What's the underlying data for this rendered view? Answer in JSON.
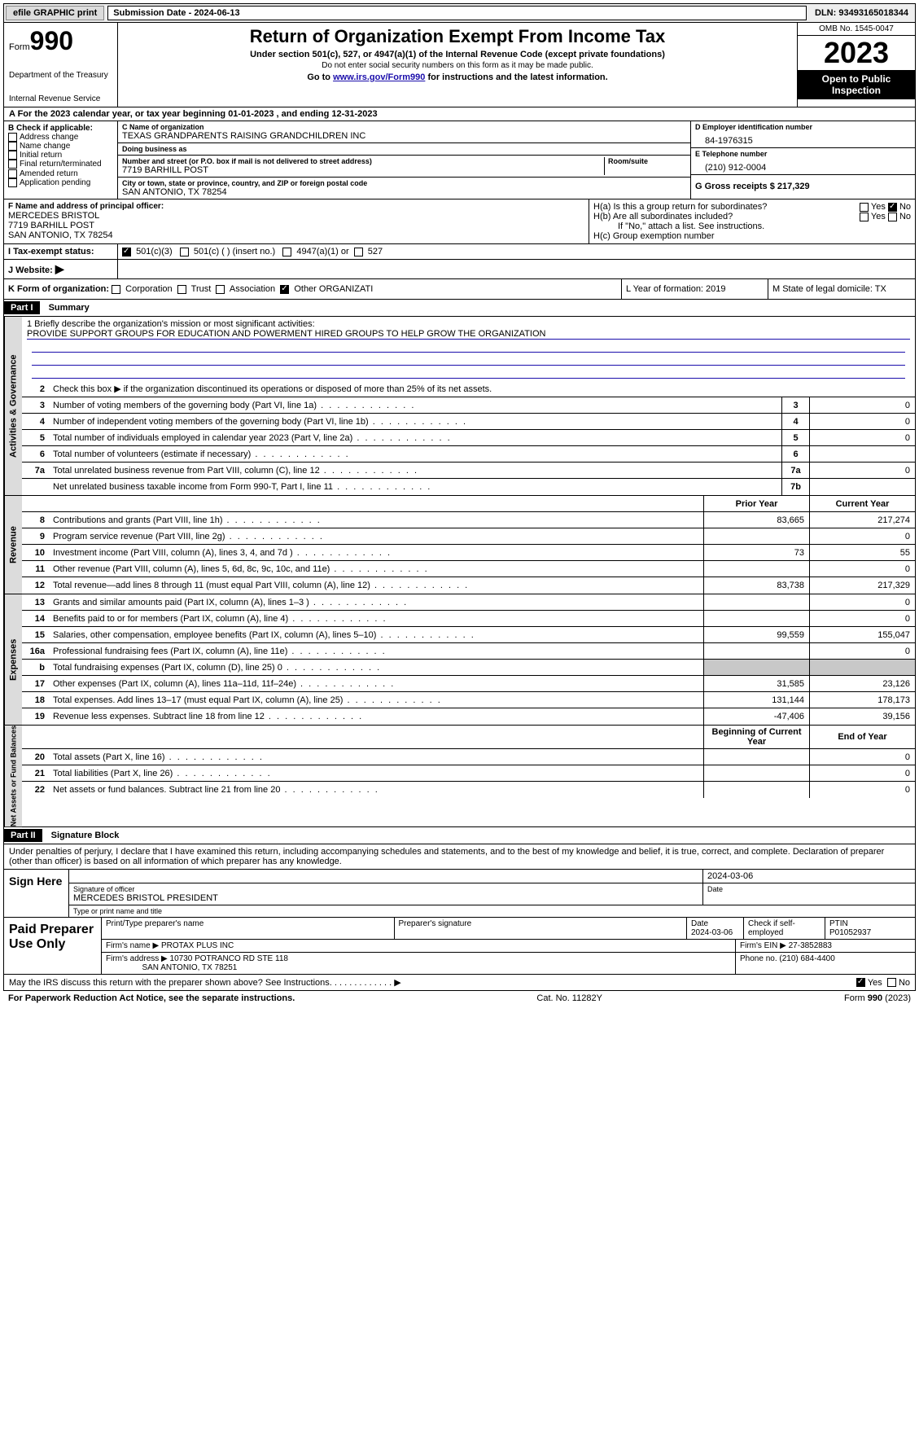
{
  "topbar": {
    "efile_label": "efile GRAPHIC print",
    "submission_label": "Submission Date - 2024-06-13",
    "dln": "DLN: 93493165018344"
  },
  "header": {
    "form_word": "Form",
    "form_num": "990",
    "dept": "Department of the Treasury",
    "irs": "Internal Revenue Service",
    "title": "Return of Organization Exempt From Income Tax",
    "subtitle": "Under section 501(c), 527, or 4947(a)(1) of the Internal Revenue Code (except private foundations)",
    "ssn_note": "Do not enter social security numbers on this form as it may be made public.",
    "goto": "Go to ",
    "goto_link": "www.irs.gov/Form990",
    "goto_tail": " for instructions and the latest information.",
    "omb": "OMB No. 1545-0047",
    "year": "2023",
    "open": "Open to Public Inspection"
  },
  "rowA": "A For the 2023 calendar year, or tax year beginning 01-01-2023   , and ending 12-31-2023",
  "boxB": {
    "title": "B Check if applicable:",
    "items": [
      "Address change",
      "Name change",
      "Initial return",
      "Final return/terminated",
      "Amended return",
      "Application pending"
    ]
  },
  "boxC": {
    "name_lbl": "C Name of organization",
    "name": "TEXAS GRANDPARENTS RAISING GRANDCHILDREN INC",
    "dba_lbl": "Doing business as",
    "dba": "",
    "addr_lbl": "Number and street (or P.O. box if mail is not delivered to street address)",
    "room_lbl": "Room/suite",
    "addr": "7719 BARHILL POST",
    "city_lbl": "City or town, state or province, country, and ZIP or foreign postal code",
    "city": "SAN ANTONIO, TX  78254"
  },
  "boxD": {
    "lbl": "D Employer identification number",
    "val": "84-1976315"
  },
  "boxE": {
    "lbl": "E Telephone number",
    "val": "(210) 912-0004"
  },
  "boxG": {
    "lbl": "G Gross receipts $ 217,329"
  },
  "boxF": {
    "lbl": "F  Name and address of principal officer:",
    "name": "MERCEDES BRISTOL",
    "addr1": "7719 BARHILL POST",
    "addr2": "SAN ANTONIO, TX  78254"
  },
  "boxH": {
    "a": "H(a)  Is this a group return for subordinates?",
    "b": "H(b)  Are all subordinates included?",
    "b_note": "If \"No,\" attach a list. See instructions.",
    "c": "H(c)  Group exemption number",
    "yes": "Yes",
    "no": "No"
  },
  "rowI": {
    "lbl": "I   Tax-exempt status:",
    "opt1": "501(c)(3)",
    "opt2": "501(c) (  ) (insert no.)",
    "opt3": "4947(a)(1) or",
    "opt4": "527"
  },
  "rowJ": {
    "lbl": "J   Website:",
    "arrow": "▶"
  },
  "rowK": {
    "lbl": "K Form of organization:",
    "opts": [
      "Corporation",
      "Trust",
      "Association",
      "Other  ORGANIZATI"
    ],
    "checked": 3,
    "L": "L Year of formation: 2019",
    "M": "M State of legal domicile: TX"
  },
  "part1": {
    "header": "Part I",
    "title": "Summary",
    "line1_lbl": "1   Briefly describe the organization's mission or most significant activities:",
    "line1_text": "PROVIDE SUPPORT GROUPS FOR EDUCATION AND POWERMENT HIRED GROUPS TO HELP GROW THE ORGANIZATION",
    "line2": "Check this box ▶      if the organization discontinued its operations or disposed of more than 25% of its net assets.",
    "sections": {
      "governance": "Activities & Governance",
      "revenue": "Revenue",
      "expenses": "Expenses",
      "netassets": "Net Assets or Fund Balances"
    },
    "gov_lines": [
      {
        "n": "3",
        "d": "Number of voting members of the governing body (Part VI, line 1a)",
        "box": "3",
        "v": "0"
      },
      {
        "n": "4",
        "d": "Number of independent voting members of the governing body (Part VI, line 1b)",
        "box": "4",
        "v": "0"
      },
      {
        "n": "5",
        "d": "Total number of individuals employed in calendar year 2023 (Part V, line 2a)",
        "box": "5",
        "v": "0"
      },
      {
        "n": "6",
        "d": "Total number of volunteers (estimate if necessary)",
        "box": "6",
        "v": ""
      },
      {
        "n": "7a",
        "d": "Total unrelated business revenue from Part VIII, column (C), line 12",
        "box": "7a",
        "v": "0"
      },
      {
        "n": "",
        "d": "Net unrelated business taxable income from Form 990-T, Part I, line 11",
        "box": "7b",
        "v": ""
      }
    ],
    "col_headers": {
      "prior": "Prior Year",
      "current": "Current Year",
      "begin": "Beginning of Current Year",
      "end": "End of Year"
    },
    "rev_lines": [
      {
        "n": "8",
        "d": "Contributions and grants (Part VIII, line 1h)",
        "p": "83,665",
        "c": "217,274"
      },
      {
        "n": "9",
        "d": "Program service revenue (Part VIII, line 2g)",
        "p": "",
        "c": "0"
      },
      {
        "n": "10",
        "d": "Investment income (Part VIII, column (A), lines 3, 4, and 7d )",
        "p": "73",
        "c": "55"
      },
      {
        "n": "11",
        "d": "Other revenue (Part VIII, column (A), lines 5, 6d, 8c, 9c, 10c, and 11e)",
        "p": "",
        "c": "0"
      },
      {
        "n": "12",
        "d": "Total revenue—add lines 8 through 11 (must equal Part VIII, column (A), line 12)",
        "p": "83,738",
        "c": "217,329"
      }
    ],
    "exp_lines": [
      {
        "n": "13",
        "d": "Grants and similar amounts paid (Part IX, column (A), lines 1–3 )",
        "p": "",
        "c": "0"
      },
      {
        "n": "14",
        "d": "Benefits paid to or for members (Part IX, column (A), line 4)",
        "p": "",
        "c": "0"
      },
      {
        "n": "15",
        "d": "Salaries, other compensation, employee benefits (Part IX, column (A), lines 5–10)",
        "p": "99,559",
        "c": "155,047"
      },
      {
        "n": "16a",
        "d": "Professional fundraising fees (Part IX, column (A), line 11e)",
        "p": "",
        "c": "0"
      },
      {
        "n": "b",
        "d": "Total fundraising expenses (Part IX, column (D), line 25) 0",
        "p": "shade",
        "c": "shade"
      },
      {
        "n": "17",
        "d": "Other expenses (Part IX, column (A), lines 11a–11d, 11f–24e)",
        "p": "31,585",
        "c": "23,126"
      },
      {
        "n": "18",
        "d": "Total expenses. Add lines 13–17 (must equal Part IX, column (A), line 25)",
        "p": "131,144",
        "c": "178,173"
      },
      {
        "n": "19",
        "d": "Revenue less expenses. Subtract line 18 from line 12",
        "p": "-47,406",
        "c": "39,156"
      }
    ],
    "net_lines": [
      {
        "n": "20",
        "d": "Total assets (Part X, line 16)",
        "p": "",
        "c": "0"
      },
      {
        "n": "21",
        "d": "Total liabilities (Part X, line 26)",
        "p": "",
        "c": "0"
      },
      {
        "n": "22",
        "d": "Net assets or fund balances. Subtract line 21 from line 20",
        "p": "",
        "c": "0"
      }
    ]
  },
  "part2": {
    "header": "Part II",
    "title": "Signature Block",
    "penalty": "Under penalties of perjury, I declare that I have examined this return, including accompanying schedules and statements, and to the best of my knowledge and belief, it is true, correct, and complete. Declaration of preparer (other than officer) is based on all information of which preparer has any knowledge.",
    "sign_here": "Sign Here",
    "sig_date": "2024-03-06",
    "sig_officer_lbl": "Signature of officer",
    "officer_name": "MERCEDES BRISTOL PRESIDENT",
    "type_name_lbl": "Type or print name and title",
    "date_lbl": "Date",
    "paid": "Paid Preparer Use Only",
    "prep_name_lbl": "Print/Type preparer's name",
    "prep_sig_lbl": "Preparer's signature",
    "prep_date": "2024-03-06",
    "self_emp": "Check        if self-employed",
    "ptin_lbl": "PTIN",
    "ptin": "P01052937",
    "firm_name_lbl": "Firm's name   ▶",
    "firm_name": "PROTAX PLUS INC",
    "firm_ein_lbl": "Firm's EIN ▶",
    "firm_ein": "27-3852883",
    "firm_addr_lbl": "Firm's address ▶",
    "firm_addr1": "10730 POTRANCO RD STE 118",
    "firm_addr2": "SAN ANTONIO, TX  78251",
    "phone_lbl": "Phone no.",
    "phone": "(210) 684-4400",
    "discuss": "May the IRS discuss this return with the preparer shown above? See Instructions.",
    "discuss_yes": "Yes",
    "discuss_no": "No"
  },
  "footer": {
    "left": "For Paperwork Reduction Act Notice, see the separate instructions.",
    "mid": "Cat. No. 11282Y",
    "right_form": "Form ",
    "right_num": "990",
    "right_year": " (2023)"
  }
}
